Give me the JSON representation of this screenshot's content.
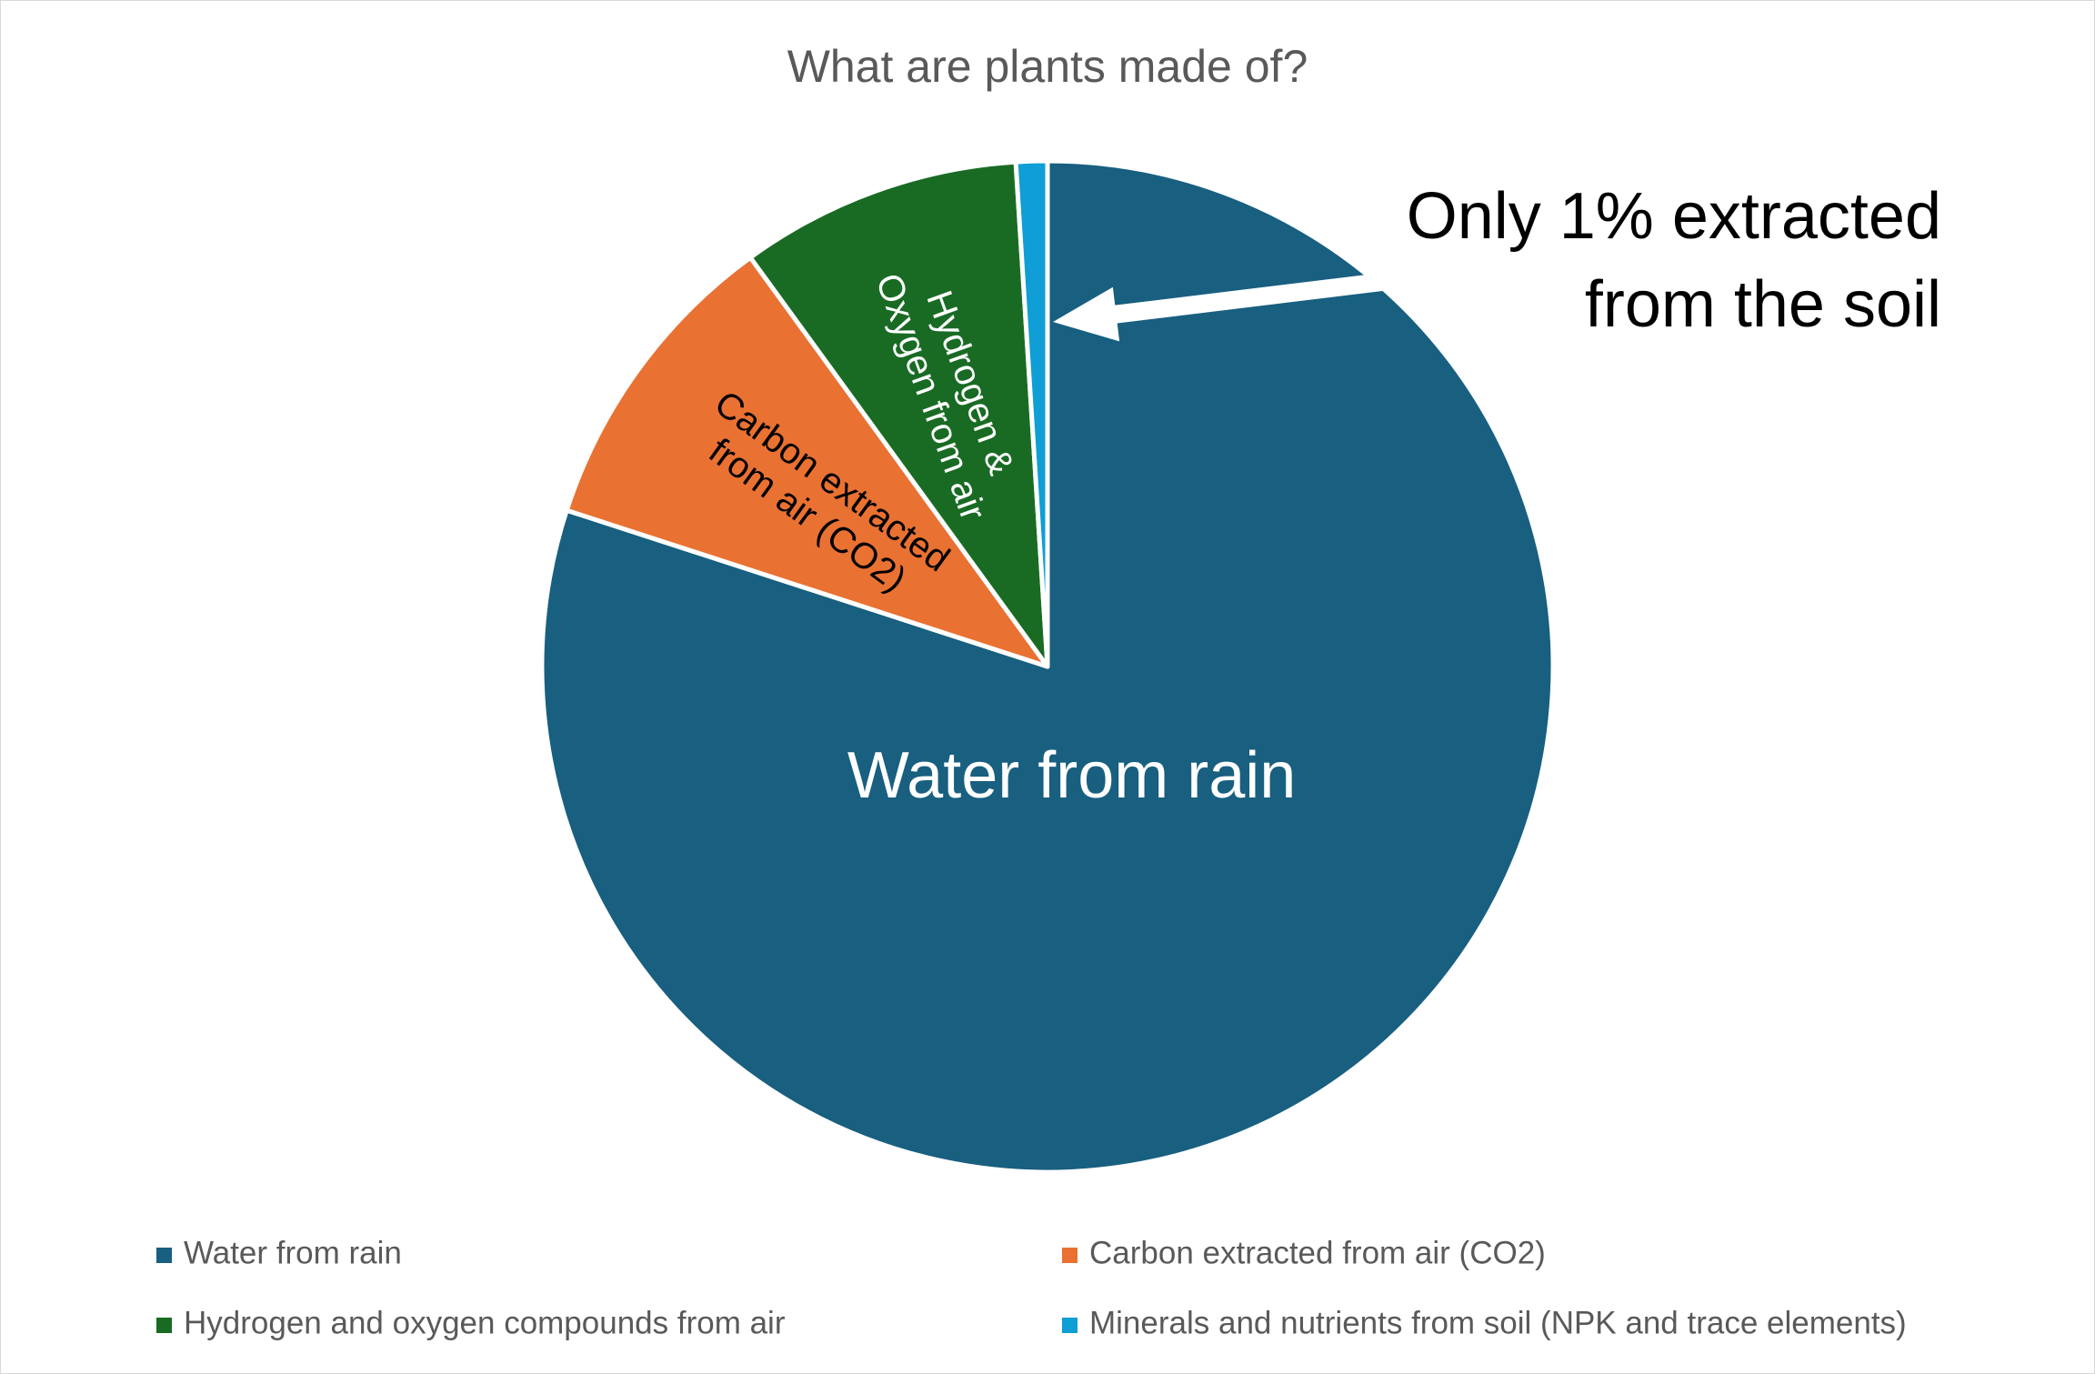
{
  "chart_data": {
    "type": "pie",
    "title": "What are plants made of?",
    "start_angle_deg": 0,
    "direction": "clockwise",
    "categories": [
      "Water from rain",
      "Carbon extracted  from air (CO2)",
      "Hydrogen and oxygen compounds from air",
      "Minerals and nutrients from soil (NPK and trace elements)"
    ],
    "values": [
      80,
      10,
      9,
      1
    ],
    "colors": [
      "#185f80",
      "#e97132",
      "#196b24",
      "#0f9ed5"
    ],
    "slice_labels": [
      [
        "Water from rain"
      ],
      [
        "Carbon extracted",
        "from air (CO2)"
      ],
      [
        "Hydrogen &",
        "Oxygen from air"
      ],
      []
    ],
    "slice_label_colors": [
      "#ffffff",
      "#000000",
      "#ffffff",
      "#ffffff"
    ],
    "legend_position": "bottom",
    "annotation": {
      "lines": [
        "Only 1% extracted",
        "from the soil"
      ],
      "points_to": "Minerals and nutrients from soil (NPK and trace elements)"
    }
  }
}
